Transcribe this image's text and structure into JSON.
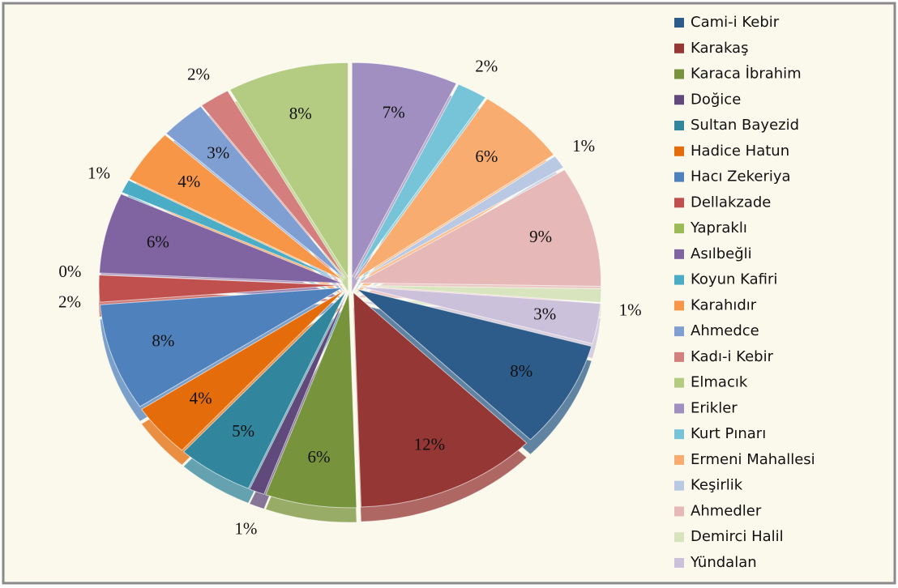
{
  "chart_data": {
    "type": "pie",
    "categories": [
      "Cami-i Kebir",
      "Karakaş",
      "Karaca İbrahim",
      "Doğice",
      "Sultan Bayezid",
      "Hadice Hatun",
      "Hacı Zekeriya",
      "Dellakzade",
      "Yapraklı",
      "Asılbeğli",
      "Koyun Kafiri",
      "Karahıdır",
      "Ahmedce",
      "Kadı-i Kebir",
      "Elmacık",
      "Erikler",
      "Kurt Pınarı",
      "Ermeni Mahallesi",
      "Keşirlik",
      "Ahmedler",
      "Demirci Halil",
      "Yündalan"
    ],
    "values": [
      8,
      12,
      6,
      1,
      5,
      4,
      8,
      2,
      0,
      6,
      1,
      4,
      3,
      2,
      8,
      7,
      2,
      6,
      1,
      9,
      1,
      3
    ],
    "value_labels": [
      "8%",
      "12%",
      "6%",
      "1%",
      "5%",
      "4%",
      "8%",
      "2%",
      "0%",
      "6%",
      "1%",
      "4%",
      "3%",
      "2%",
      "8%",
      "7%",
      "2%",
      "6%",
      "1%",
      "9%",
      "1%",
      "3%"
    ],
    "colors": [
      "#2e5c8a",
      "#953735",
      "#77933c",
      "#604a7b",
      "#31859c",
      "#e46c0a",
      "#4f81bd",
      "#c0504d",
      "#9bbb59",
      "#8064a2",
      "#4bacc6",
      "#f79646",
      "#7f9fd3",
      "#d47f7d",
      "#b3cc82",
      "#a08fc0",
      "#77c3d8",
      "#f9ac70",
      "#b9c9e4",
      "#e6b9b8",
      "#d7e4bd",
      "#ccc1da"
    ],
    "legend": "right"
  }
}
